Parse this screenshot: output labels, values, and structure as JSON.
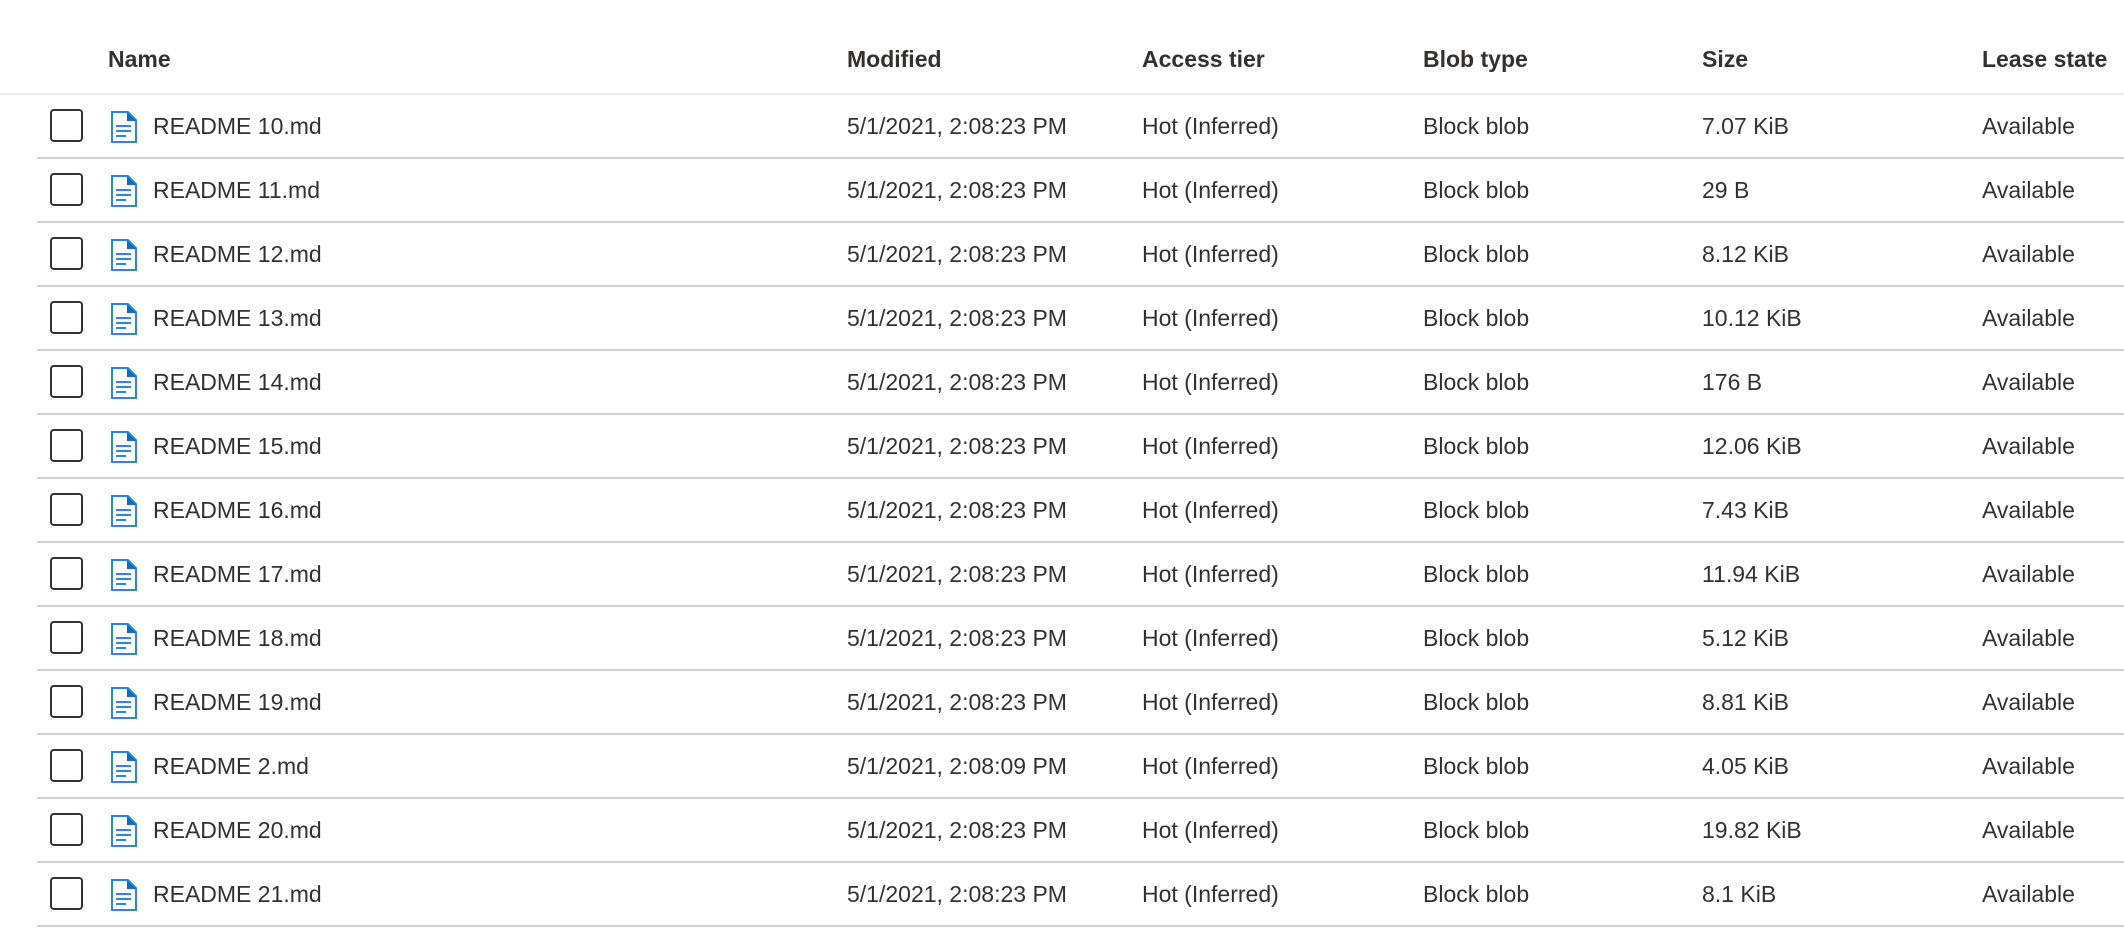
{
  "columns": {
    "name": "Name",
    "modified": "Modified",
    "access_tier": "Access tier",
    "blob_type": "Blob type",
    "size": "Size",
    "lease_state": "Lease state"
  },
  "icon_color": "#2b88d8",
  "rows": [
    {
      "name": "README 10.md",
      "modified": "5/1/2021, 2:08:23 PM",
      "access_tier": "Hot (Inferred)",
      "blob_type": "Block blob",
      "size": "7.07 KiB",
      "lease_state": "Available"
    },
    {
      "name": "README 11.md",
      "modified": "5/1/2021, 2:08:23 PM",
      "access_tier": "Hot (Inferred)",
      "blob_type": "Block blob",
      "size": "29 B",
      "lease_state": "Available"
    },
    {
      "name": "README 12.md",
      "modified": "5/1/2021, 2:08:23 PM",
      "access_tier": "Hot (Inferred)",
      "blob_type": "Block blob",
      "size": "8.12 KiB",
      "lease_state": "Available"
    },
    {
      "name": "README 13.md",
      "modified": "5/1/2021, 2:08:23 PM",
      "access_tier": "Hot (Inferred)",
      "blob_type": "Block blob",
      "size": "10.12 KiB",
      "lease_state": "Available"
    },
    {
      "name": "README 14.md",
      "modified": "5/1/2021, 2:08:23 PM",
      "access_tier": "Hot (Inferred)",
      "blob_type": "Block blob",
      "size": "176 B",
      "lease_state": "Available"
    },
    {
      "name": "README 15.md",
      "modified": "5/1/2021, 2:08:23 PM",
      "access_tier": "Hot (Inferred)",
      "blob_type": "Block blob",
      "size": "12.06 KiB",
      "lease_state": "Available"
    },
    {
      "name": "README 16.md",
      "modified": "5/1/2021, 2:08:23 PM",
      "access_tier": "Hot (Inferred)",
      "blob_type": "Block blob",
      "size": "7.43 KiB",
      "lease_state": "Available"
    },
    {
      "name": "README 17.md",
      "modified": "5/1/2021, 2:08:23 PM",
      "access_tier": "Hot (Inferred)",
      "blob_type": "Block blob",
      "size": "11.94 KiB",
      "lease_state": "Available"
    },
    {
      "name": "README 18.md",
      "modified": "5/1/2021, 2:08:23 PM",
      "access_tier": "Hot (Inferred)",
      "blob_type": "Block blob",
      "size": "5.12 KiB",
      "lease_state": "Available"
    },
    {
      "name": "README 19.md",
      "modified": "5/1/2021, 2:08:23 PM",
      "access_tier": "Hot (Inferred)",
      "blob_type": "Block blob",
      "size": "8.81 KiB",
      "lease_state": "Available"
    },
    {
      "name": "README 2.md",
      "modified": "5/1/2021, 2:08:09 PM",
      "access_tier": "Hot (Inferred)",
      "blob_type": "Block blob",
      "size": "4.05 KiB",
      "lease_state": "Available"
    },
    {
      "name": "README 20.md",
      "modified": "5/1/2021, 2:08:23 PM",
      "access_tier": "Hot (Inferred)",
      "blob_type": "Block blob",
      "size": "19.82 KiB",
      "lease_state": "Available"
    },
    {
      "name": "README 21.md",
      "modified": "5/1/2021, 2:08:23 PM",
      "access_tier": "Hot (Inferred)",
      "blob_type": "Block blob",
      "size": "8.1 KiB",
      "lease_state": "Available"
    }
  ]
}
